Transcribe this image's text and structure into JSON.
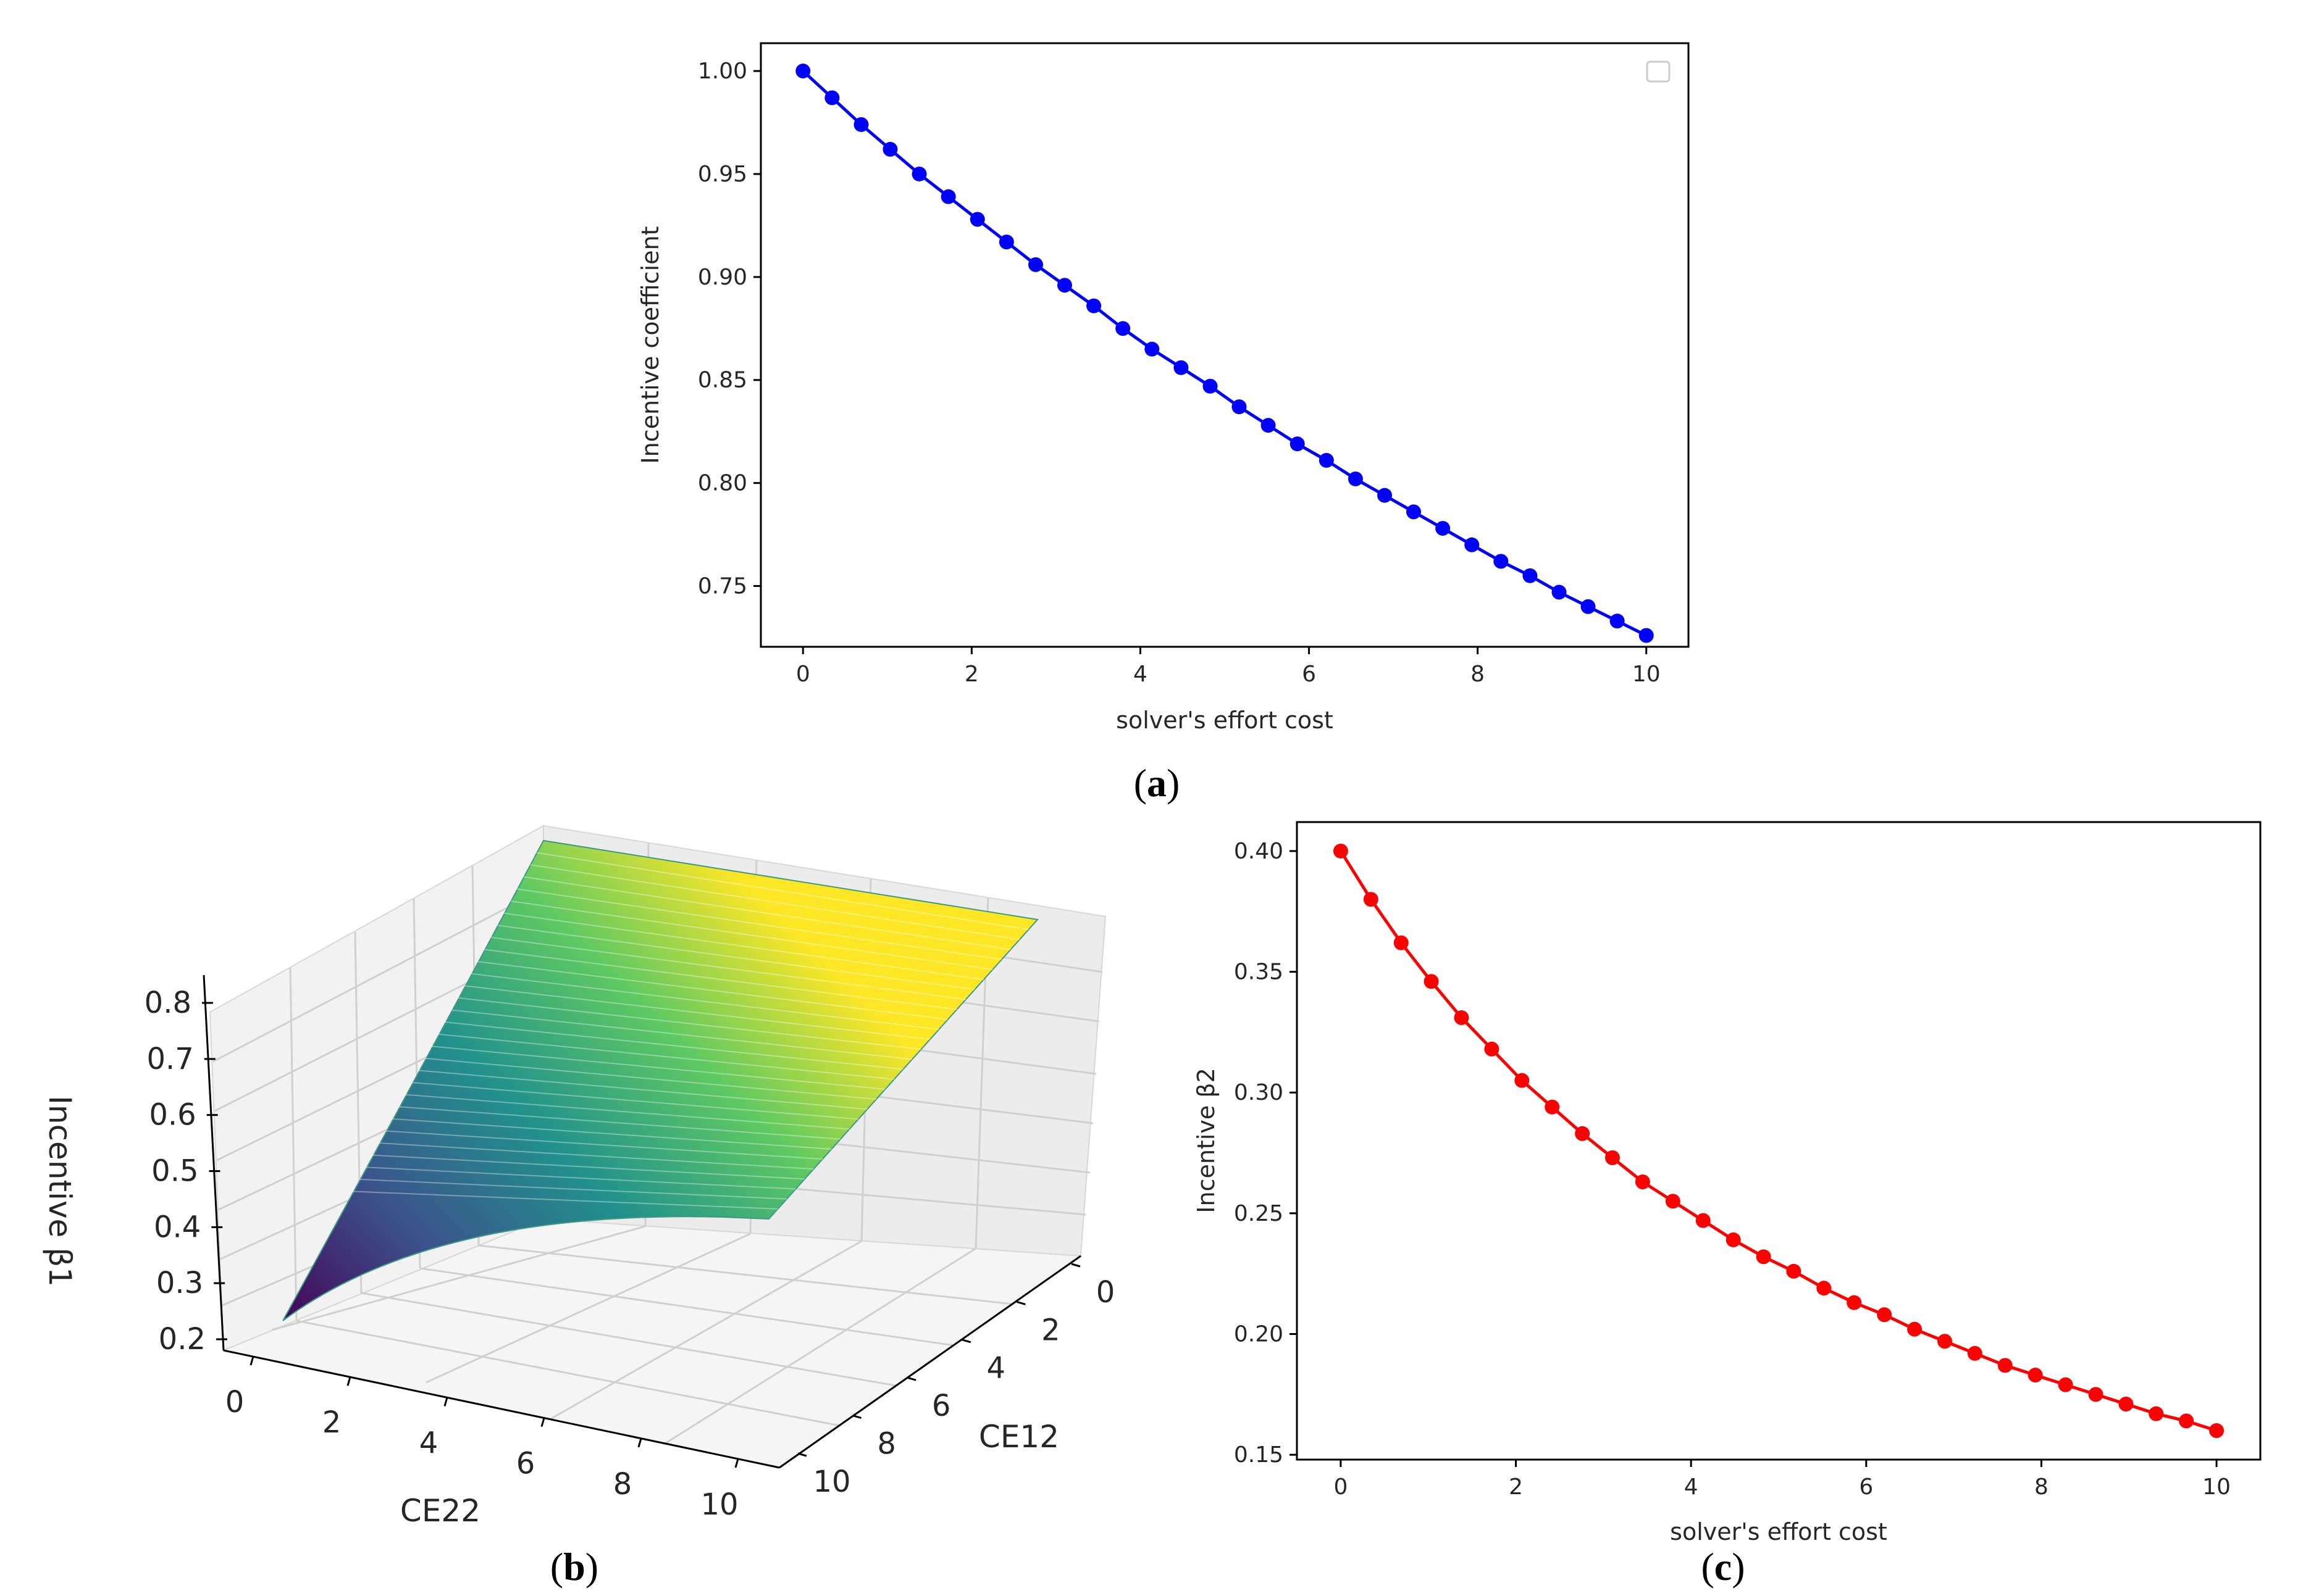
{
  "captions": {
    "a_open": "(",
    "a_letter": "a",
    "a_close": ")",
    "b_open": "(",
    "b_letter": "b",
    "b_close": ")",
    "c_open": "(",
    "c_letter": "c",
    "c_close": ")"
  },
  "colors": {
    "panel_a_series": "#0000ff",
    "panel_c_series": "#ff0000",
    "colormap": [
      "#440154",
      "#3b528b",
      "#21918c",
      "#5ec962",
      "#fde725"
    ]
  },
  "chart_data": [
    {
      "id": "a",
      "type": "line",
      "xlabel": "solver's effort cost",
      "ylabel": "Incentive coefficient",
      "xlim": [
        -0.5,
        10.5
      ],
      "ylim": [
        0.7205,
        1.0135
      ],
      "xticks": [
        "0",
        "2",
        "4",
        "6",
        "8",
        "10"
      ],
      "yticks": [
        "0.75",
        "0.80",
        "0.85",
        "0.90",
        "0.95",
        "1.00"
      ],
      "legend": "empty box, top-right",
      "grid": false,
      "marker": "circle",
      "color": "#0000ff",
      "x": [
        0,
        0.345,
        0.69,
        1.034,
        1.379,
        1.724,
        2.069,
        2.414,
        2.759,
        3.103,
        3.448,
        3.793,
        4.138,
        4.483,
        4.828,
        5.172,
        5.517,
        5.862,
        6.207,
        6.552,
        6.897,
        7.241,
        7.586,
        7.931,
        8.276,
        8.621,
        8.966,
        9.31,
        9.655,
        10
      ],
      "y": [
        1.0,
        0.987,
        0.974,
        0.962,
        0.95,
        0.939,
        0.928,
        0.917,
        0.906,
        0.896,
        0.886,
        0.875,
        0.865,
        0.856,
        0.847,
        0.837,
        0.828,
        0.819,
        0.811,
        0.802,
        0.794,
        0.786,
        0.778,
        0.77,
        0.762,
        0.755,
        0.747,
        0.74,
        0.733,
        0.726
      ]
    },
    {
      "id": "b",
      "type": "surface",
      "xlabel": "CE22",
      "ylabel": "CE12",
      "zlabel": "Incentive β1",
      "xticks": [
        "0",
        "2",
        "4",
        "6",
        "8",
        "10"
      ],
      "yticks": [
        "0",
        "2",
        "4",
        "6",
        "8",
        "10"
      ],
      "zticks": [
        "0.2",
        "0.3",
        "0.4",
        "0.5",
        "0.6",
        "0.7",
        "0.8"
      ],
      "zlim": [
        0.2,
        0.8
      ],
      "colormap": "viridis",
      "grid": true,
      "corners": [
        {
          "CE22": 0,
          "CE12": 0,
          "z": 0.8
        },
        {
          "CE22": 10,
          "CE12": 0,
          "z": 0.8
        },
        {
          "CE22": 0,
          "CE12": 10,
          "z": 0.25
        },
        {
          "CE22": 10,
          "CE12": 10,
          "z": 0.55
        }
      ]
    },
    {
      "id": "c",
      "type": "line",
      "xlabel": "solver's effort cost",
      "ylabel": "Incentive β2",
      "xlim": [
        -0.5,
        10.5
      ],
      "ylim": [
        0.148,
        0.412
      ],
      "xticks": [
        "0",
        "2",
        "4",
        "6",
        "8",
        "10"
      ],
      "yticks": [
        "0.15",
        "0.20",
        "0.25",
        "0.30",
        "0.35",
        "0.40"
      ],
      "grid": false,
      "marker": "circle",
      "color": "#ff0000",
      "x": [
        0,
        0.345,
        0.69,
        1.034,
        1.379,
        1.724,
        2.069,
        2.414,
        2.759,
        3.103,
        3.448,
        3.793,
        4.138,
        4.483,
        4.828,
        5.172,
        5.517,
        5.862,
        6.207,
        6.552,
        6.897,
        7.241,
        7.586,
        7.931,
        8.276,
        8.621,
        8.966,
        9.31,
        9.655,
        10
      ],
      "y": [
        0.4,
        0.38,
        0.362,
        0.346,
        0.331,
        0.318,
        0.305,
        0.294,
        0.283,
        0.273,
        0.263,
        0.255,
        0.247,
        0.239,
        0.232,
        0.226,
        0.219,
        0.213,
        0.208,
        0.202,
        0.197,
        0.192,
        0.187,
        0.183,
        0.179,
        0.175,
        0.171,
        0.167,
        0.164,
        0.16
      ]
    }
  ]
}
